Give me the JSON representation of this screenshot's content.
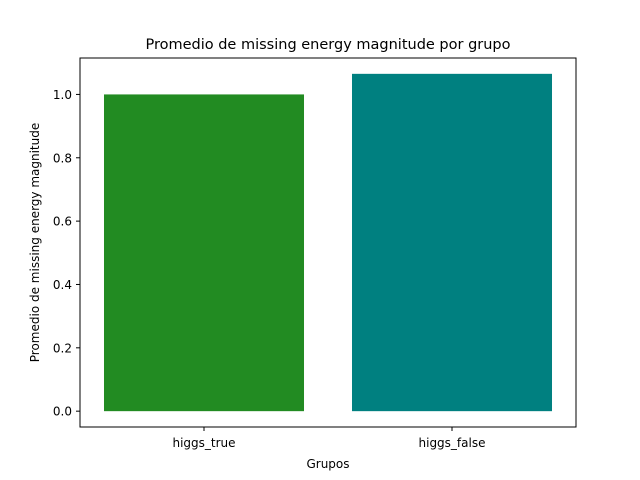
{
  "chart_data": {
    "type": "bar",
    "title": "Promedio de missing energy magnitude por grupo",
    "xlabel": "Grupos",
    "ylabel": "Promedio de missing energy magnitude",
    "categories": [
      "higgs_true",
      "higgs_false"
    ],
    "values": [
      1.0,
      1.065
    ],
    "colors": [
      "#228b22",
      "#008080"
    ],
    "ylim": [
      -0.05,
      1.115
    ],
    "yticks": [
      0.0,
      0.2,
      0.4,
      0.6,
      0.8,
      1.0
    ],
    "ytick_labels": [
      "0.0",
      "0.2",
      "0.4",
      "0.6",
      "0.8",
      "1.0"
    ],
    "grid": false,
    "legend": "none"
  }
}
